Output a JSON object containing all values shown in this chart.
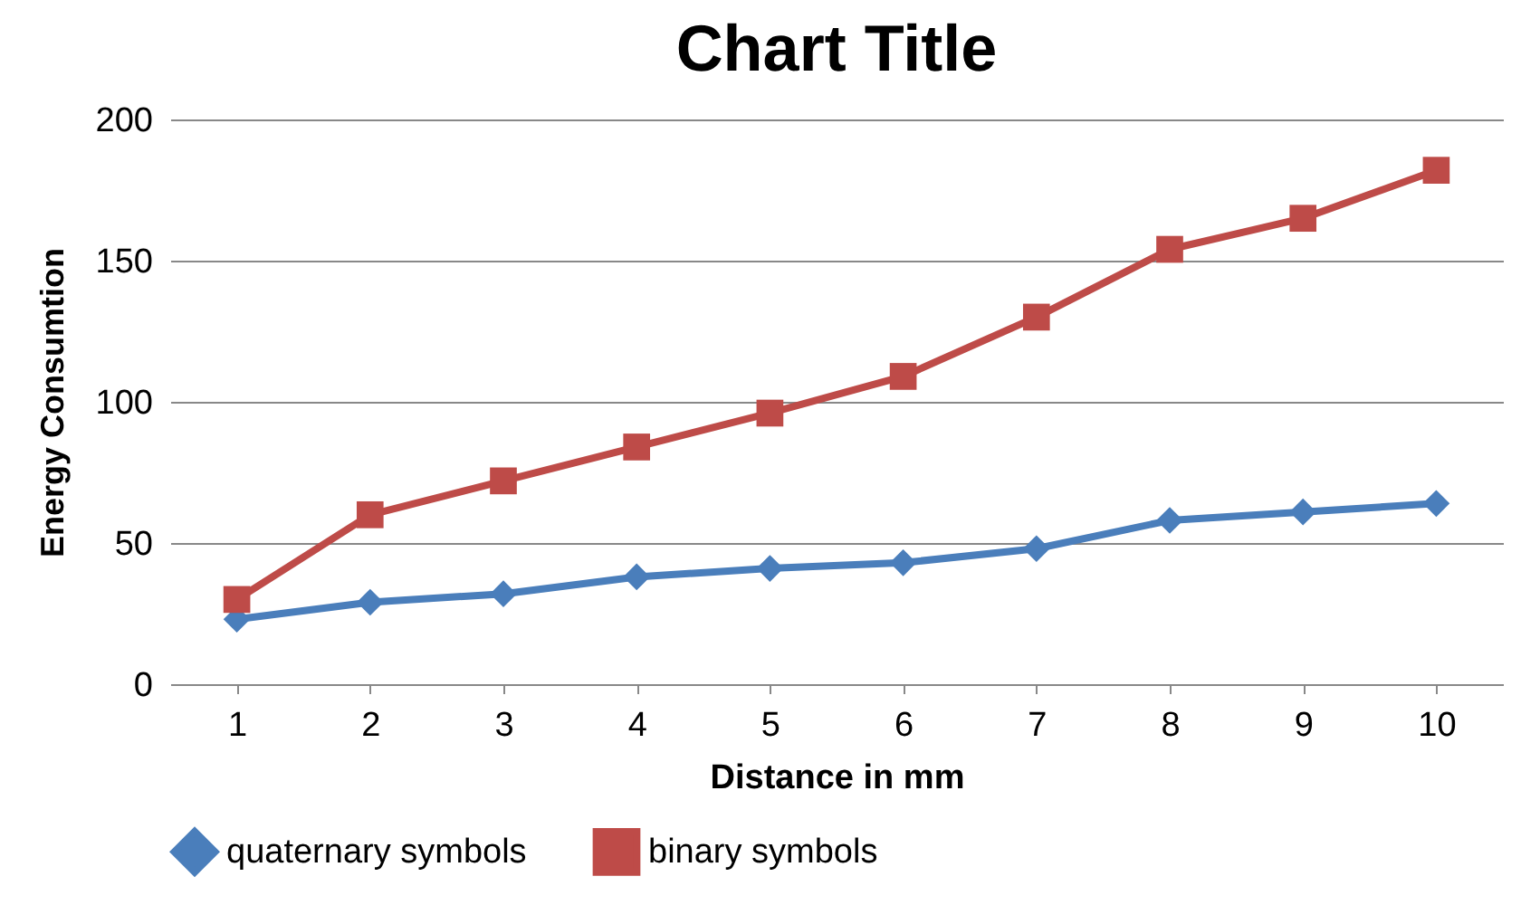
{
  "chart_data": {
    "type": "line",
    "title": "Chart Title",
    "xlabel": "Distance in mm",
    "ylabel": "Energy Consumtion",
    "categories": [
      "1",
      "2",
      "3",
      "4",
      "5",
      "6",
      "7",
      "8",
      "9",
      "10"
    ],
    "series": [
      {
        "name": "quaternary symbols",
        "color": "#4a7ebb",
        "marker": "diamond",
        "values": [
          23,
          29,
          32,
          38,
          41,
          43,
          48,
          58,
          61,
          64
        ]
      },
      {
        "name": "binary symbols",
        "color": "#be4b48",
        "marker": "square",
        "values": [
          30,
          60,
          72,
          84,
          96,
          109,
          130,
          154,
          165,
          182
        ]
      }
    ],
    "ylim": [
      0,
      200
    ],
    "yticks": [
      0,
      50,
      100,
      150,
      200
    ],
    "grid": "y",
    "legend": "bottom",
    "line_style": "solid"
  }
}
